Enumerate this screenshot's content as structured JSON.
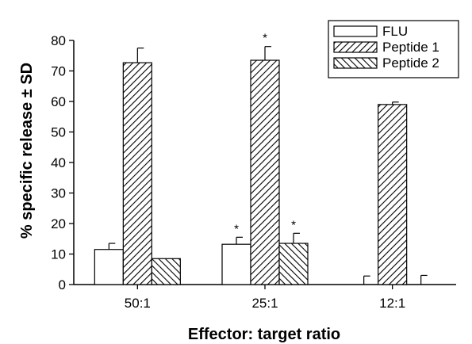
{
  "chart_data": {
    "type": "bar",
    "title": "",
    "xlabel": "Effector: target ratio",
    "ylabel": "% specific release ± SD",
    "ylim": [
      0,
      80
    ],
    "yticks": [
      0,
      10,
      20,
      30,
      40,
      50,
      60,
      70,
      80
    ],
    "categories": [
      "50:1",
      "25:1",
      "12:1"
    ],
    "series": [
      {
        "name": "FLU",
        "values": [
          11.5,
          13.2,
          0
        ],
        "errors": [
          2.0,
          2.3,
          2.8
        ],
        "pattern": "none"
      },
      {
        "name": "Peptide 1",
        "values": [
          72.7,
          73.5,
          59.0
        ],
        "errors": [
          4.8,
          4.5,
          0.8
        ],
        "pattern": "hatch-forward"
      },
      {
        "name": "Peptide 2",
        "values": [
          8.5,
          13.5,
          0
        ],
        "errors": [
          0,
          3.3,
          3.0
        ],
        "pattern": "hatch-backward"
      }
    ],
    "significance_marker": "*",
    "significant": [
      [
        false,
        true,
        false
      ],
      [
        false,
        true,
        false
      ],
      [
        false,
        true,
        false
      ]
    ],
    "legend_position": "top-right",
    "grid": false
  }
}
